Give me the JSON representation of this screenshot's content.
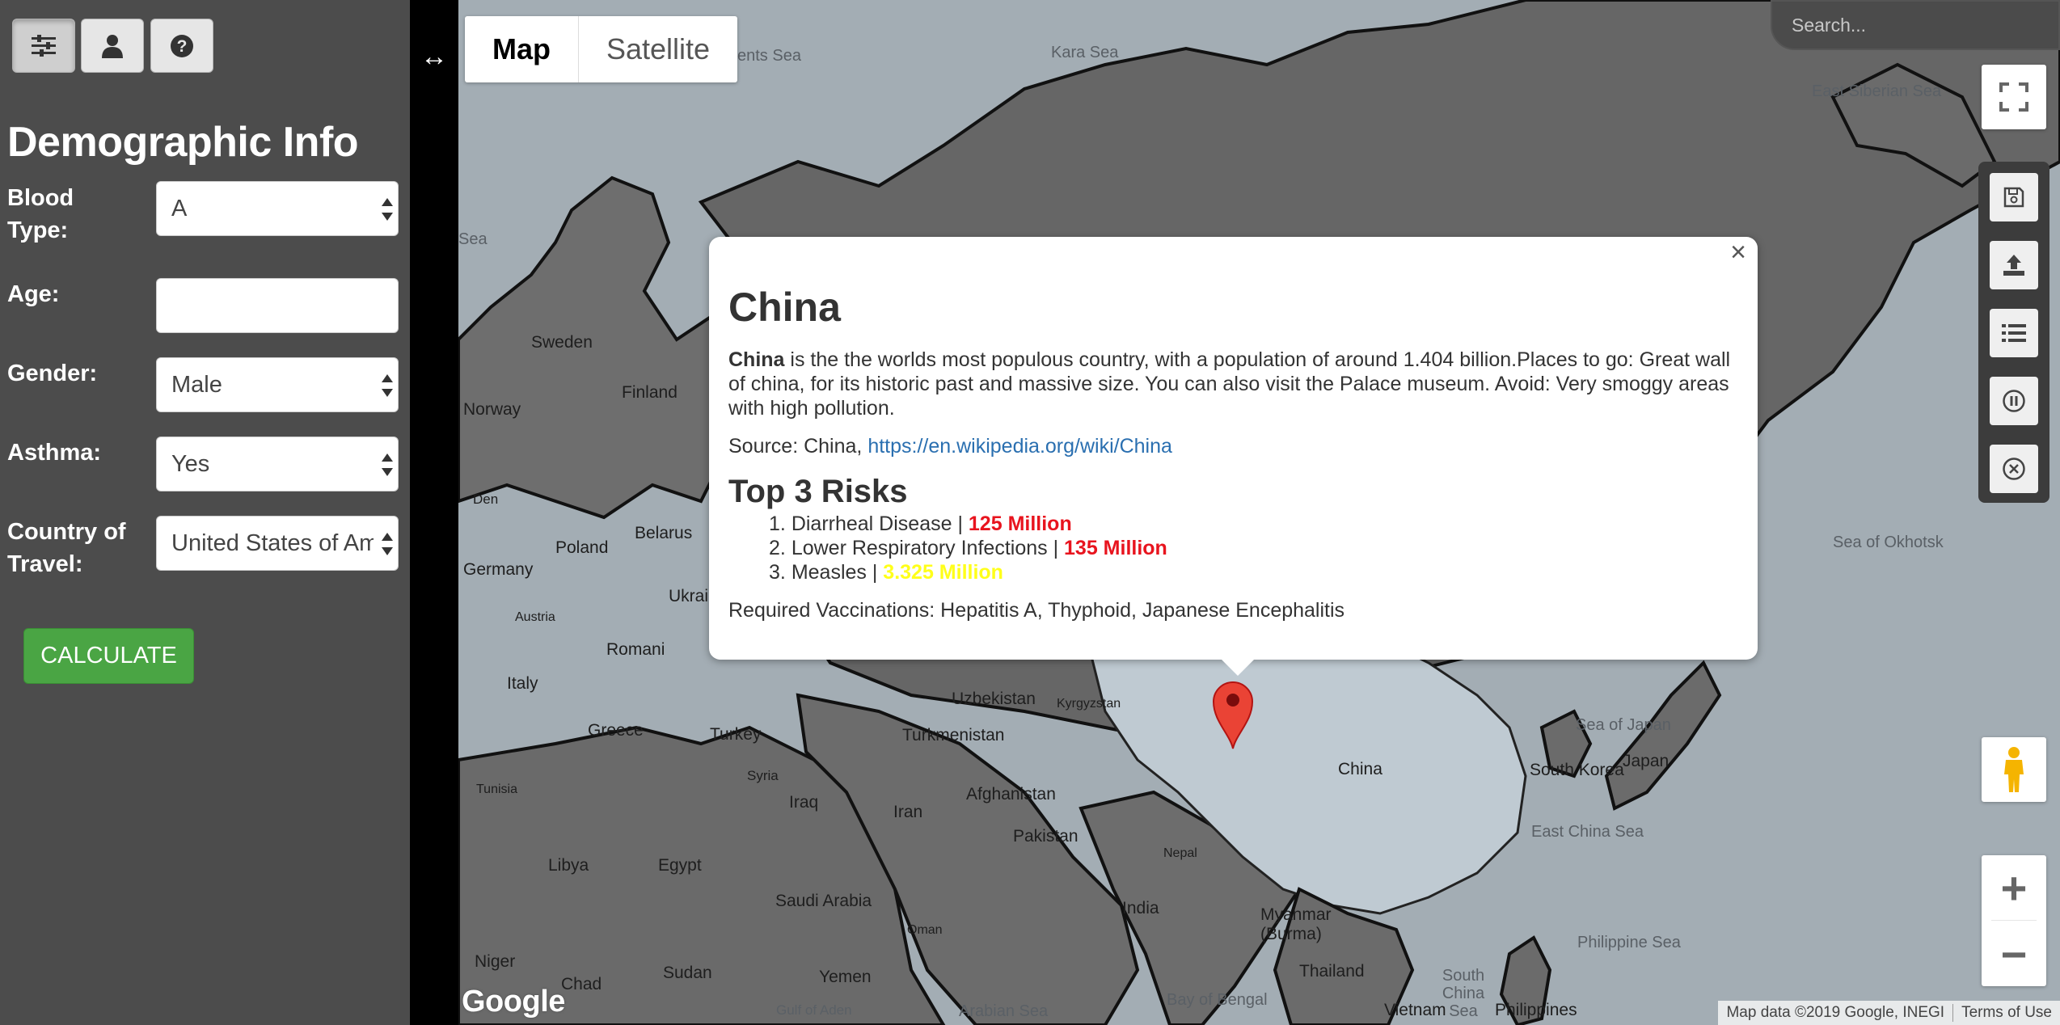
{
  "sidebar": {
    "top_buttons": [
      "settings",
      "profile",
      "help"
    ],
    "title": "Demographic Info",
    "fields": [
      {
        "label": "Blood Type:",
        "value": "A"
      },
      {
        "label": "Age:",
        "value": ""
      },
      {
        "label": "Gender:",
        "value": "Male"
      },
      {
        "label": "Asthma:",
        "value": "Yes"
      },
      {
        "label": "Country of Travel:",
        "value": "United States of America"
      }
    ],
    "calculate_label": "CALCULATE"
  },
  "map": {
    "type_options": [
      "Map",
      "Satellite"
    ],
    "selected_type": "Map",
    "search_placeholder": "Search...",
    "labels": {
      "kara_sea": "Kara Sea",
      "ents_sea": "ents Sea",
      "sea_left": "Sea",
      "east_siberian_sea": "East Siberian Sea",
      "sea_of_okhotsk": "Sea of Okhotsk",
      "sweden": "Sweden",
      "finland": "Finland",
      "norway": "Norway",
      "denmark": "Den",
      "poland": "Poland",
      "belarus": "Belarus",
      "germany": "Germany",
      "ukraine": "Ukrai",
      "austria": "Austria",
      "romania": "Romani",
      "italy": "Italy",
      "greece": "Greece",
      "turkey": "Turkey",
      "syria": "Syria",
      "iraq": "Iraq",
      "iran": "Iran",
      "turkmenistan": "Turkmenistan",
      "uzbekistan": "Uzbekistan",
      "kyrgyzstan": "Kyrgyzstan",
      "afghanistan": "Afghanistan",
      "pakistan": "Pakistan",
      "nepal": "Nepal",
      "india": "India",
      "china": "China",
      "south_korea": "South Korea",
      "japan": "Japan",
      "sea_of_japan": "Sea of Japan",
      "east_china_sea": "East China Sea",
      "philippine_sea": "Philippine Sea",
      "south_china_sea": "South China Sea",
      "myanmar": "Myanmar (Burma)",
      "thailand": "Thailand",
      "vietnam": "Vietnam",
      "philippines": "Philippines",
      "bay_of_bengal": "Bay of Bengal",
      "arabian_sea": "Arabian Sea",
      "gulf_of_aden": "Gulf of Aden",
      "yemen": "Yemen",
      "oman": "Oman",
      "saudi_arabia": "Saudi Arabia",
      "egypt": "Egypt",
      "libya": "Libya",
      "tunisia": "Tunisia",
      "sudan": "Sudan",
      "chad": "Chad",
      "niger": "Niger"
    },
    "logo": "Google",
    "attribution": "Map data ©2019 Google, INEGI",
    "terms": "Terms of Use",
    "zoom_in": "+",
    "zoom_out": "−"
  },
  "info_window": {
    "close": "×",
    "title": "China",
    "desc_bold": "China",
    "desc_rest": " is the the worlds most populous country, with a population of around 1.404 billion.Places to go: Great wall of china, for its historic past and massive size. You can also visit the Palace museum. Avoid: Very smoggy areas with high pollution.",
    "source_prefix": "Source: China, ",
    "source_link": "https://en.wikipedia.org/wiki/China",
    "risks_title": "Top 3 Risks",
    "risks": [
      {
        "num": "1.",
        "name": "Diarrheal Disease | ",
        "value": "125 Million",
        "color": "#e8141e"
      },
      {
        "num": "2.",
        "name": "Lower Respiratory Infections | ",
        "value": "135 Million",
        "color": "#e8141e"
      },
      {
        "num": "3.",
        "name": "Measles | ",
        "value": "3.325 Million",
        "color": "#ffff1a"
      }
    ],
    "vaccinations": "Required Vaccinations: Hepatitis A, Thyphoid, Japanese Encephalitis"
  },
  "colors": {
    "sidebar_bg": "#4c4c4c",
    "calculate": "#4aa544",
    "water": "#a3adb4",
    "land": "#6b6b6b",
    "china": "#bfcad2",
    "marker": "#ea4335"
  }
}
